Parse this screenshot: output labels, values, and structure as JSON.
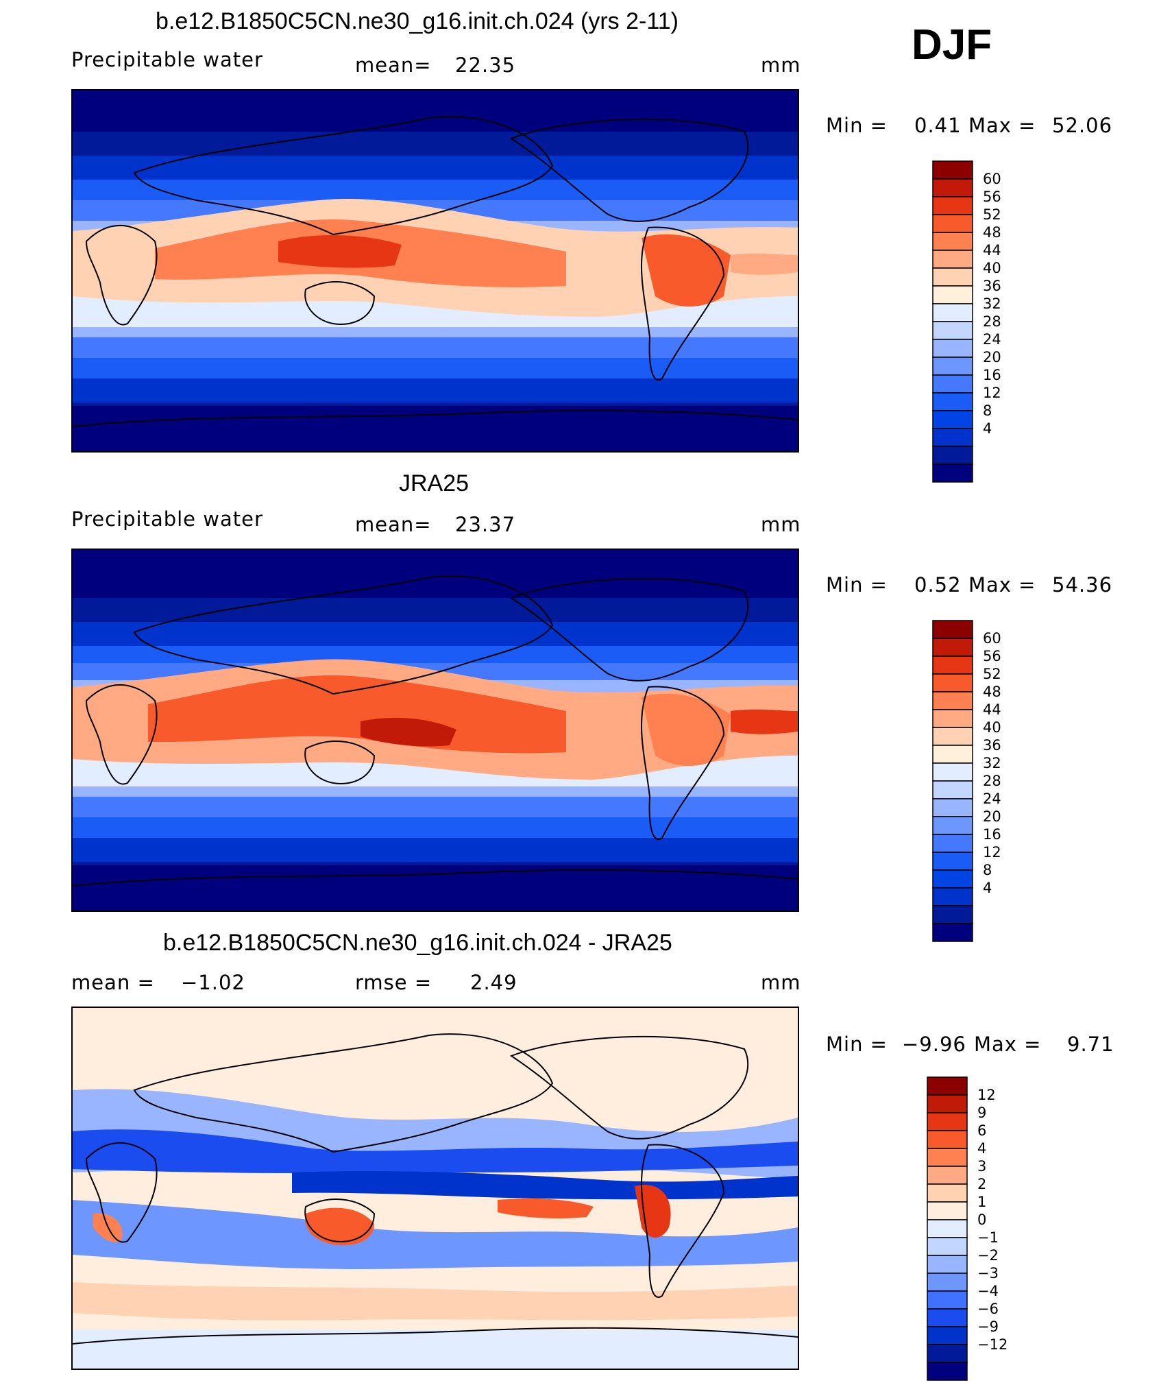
{
  "season": "DJF",
  "palette_main": [
    "#00007f",
    "#001a99",
    "#0033cc",
    "#0044e6",
    "#1a5cf5",
    "#4479ff",
    "#6e96ff",
    "#99b5ff",
    "#c2d6ff",
    "#e2eeff",
    "#fff0dc",
    "#ffd2b4",
    "#ffaa82",
    "#ff8050",
    "#f95a2c",
    "#e63614",
    "#c21a08",
    "#8c0000"
  ],
  "palette_diff": [
    "#00007f",
    "#001a99",
    "#0033cc",
    "#1a4cf0",
    "#4072ff",
    "#6e96ff",
    "#99b5ff",
    "#c2d6ff",
    "#e2eeff",
    "#ffeedd",
    "#ffd2b4",
    "#ffaa82",
    "#ff8050",
    "#f95a2c",
    "#e63614",
    "#c21a08",
    "#8c0000"
  ],
  "chart_data": [
    {
      "type": "heatmap",
      "title": "b.e12.B1850C5CN.ne30_g16.init.ch.024 (yrs 2-11)",
      "variable": "Precipitable water",
      "mean_label": "mean=",
      "mean": "22.35",
      "units": "mm",
      "min_label": "Min =",
      "min": "0.41",
      "max_label": "Max =",
      "max": "52.06",
      "colorbar_levels": [
        "60",
        "56",
        "52",
        "48",
        "44",
        "40",
        "36",
        "32",
        "28",
        "24",
        "20",
        "16",
        "12",
        "8",
        "4"
      ]
    },
    {
      "type": "heatmap",
      "title": "JRA25",
      "variable": "Precipitable water",
      "mean_label": "mean=",
      "mean": "23.37",
      "units": "mm",
      "min_label": "Min =",
      "min": "0.52",
      "max_label": "Max =",
      "max": "54.36",
      "colorbar_levels": [
        "60",
        "56",
        "52",
        "48",
        "44",
        "40",
        "36",
        "32",
        "28",
        "24",
        "20",
        "16",
        "12",
        "8",
        "4"
      ]
    },
    {
      "type": "heatmap",
      "title": "b.e12.B1850C5CN.ne30_g16.init.ch.024 - JRA25",
      "mean_label": "mean =",
      "mean": "−1.02",
      "rmse_label": "rmse =",
      "rmse": "2.49",
      "units": "mm",
      "min_label": "Min =",
      "min": "−9.96",
      "max_label": "Max =",
      "max": "9.71",
      "colorbar_levels": [
        "12",
        "9",
        "6",
        "4",
        "3",
        "2",
        "1",
        "0",
        "−1",
        "−2",
        "−3",
        "−4",
        "−6",
        "−9",
        "−12"
      ]
    }
  ]
}
